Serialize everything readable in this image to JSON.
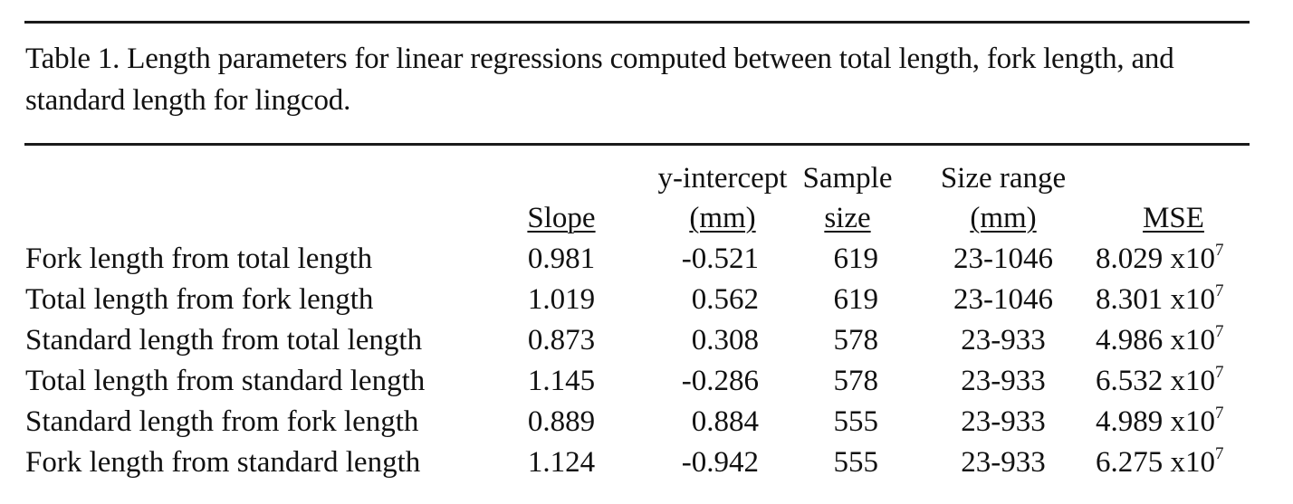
{
  "caption": "Table 1.  Length parameters for linear regressions computed between total length, fork length, and standard length for lingcod.",
  "headers": {
    "slope": "Slope",
    "intercept_top": "y-intercept",
    "intercept_bot": "(mm)",
    "sample_top": "Sample",
    "sample_bot": "size",
    "range_top": "Size range",
    "range_bot": "(mm)",
    "mse": "MSE"
  },
  "rows": [
    {
      "label": "Fork length from total length",
      "slope": "0.981",
      "intercept": "-0.521",
      "n": "619",
      "range": "23-1046",
      "mse": "8.029 x10",
      "exp": "7"
    },
    {
      "label": "Total length from fork length",
      "slope": "1.019",
      "intercept": "0.562",
      "n": "619",
      "range": "23-1046",
      "mse": "8.301 x10",
      "exp": "7"
    },
    {
      "label": "Standard length from total length",
      "slope": "0.873",
      "intercept": "0.308",
      "n": "578",
      "range": "23-933",
      "mse": "4.986 x10",
      "exp": "7"
    },
    {
      "label": "Total length from standard length",
      "slope": "1.145",
      "intercept": "-0.286",
      "n": "578",
      "range": "23-933",
      "mse": "6.532 x10",
      "exp": "7"
    },
    {
      "label": "Standard length from fork length",
      "slope": "0.889",
      "intercept": "0.884",
      "n": "555",
      "range": "23-933",
      "mse": "4.989 x10",
      "exp": "7"
    },
    {
      "label": "Fork length from standard length",
      "slope": "1.124",
      "intercept": "-0.942",
      "n": "555",
      "range": "23-933",
      "mse": "6.275 x10",
      "exp": "7"
    }
  ]
}
